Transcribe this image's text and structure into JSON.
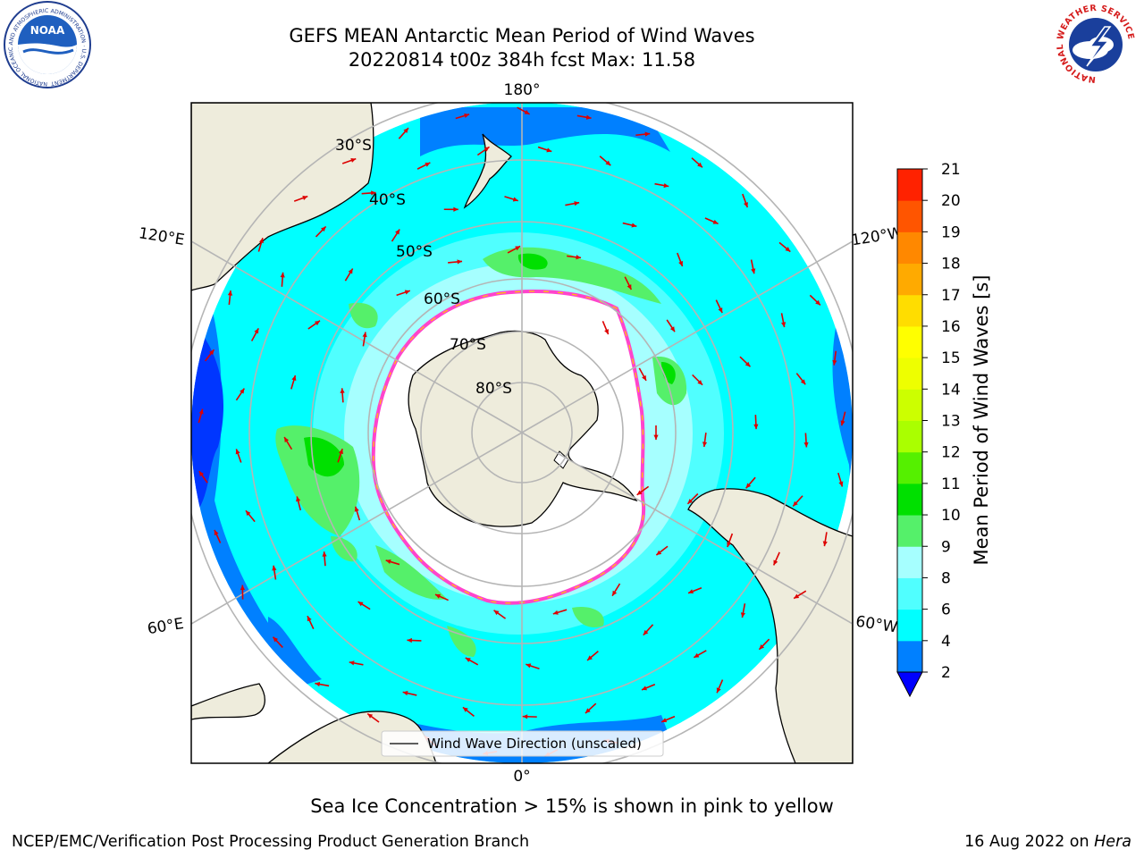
{
  "header": {
    "title_line1": "GEFS MEAN Antarctic Mean Period of Wind Waves",
    "title_line2": "20220814 t00z 384h fcst   Max: 11.58"
  },
  "logos": {
    "left_text": "NOAA",
    "left_ring_text": "NATIONAL OCEANIC AND ATMOSPHERIC ADMINISTRATION · U.S. DEPARTMENT OF COMMERCE",
    "right_ring_text": "NATIONAL WEATHER SERVICE"
  },
  "map": {
    "projection": "south-polar-stereographic",
    "lon_labels": {
      "top": "180°",
      "bottom": "0°",
      "upper_left": "120°E",
      "upper_right": "120°W",
      "lower_left": "60°E",
      "lower_right": "60°W"
    },
    "lat_labels": [
      "30°S",
      "40°S",
      "50°S",
      "60°S",
      "70°S",
      "80°S"
    ],
    "legend_label": "Wind Wave Direction (unscaled)",
    "colors": {
      "ocean_base": "#00ffff",
      "light_cyan": "#a6ffff",
      "mid_blue": "#0080ff",
      "deep_blue": "#0036ff",
      "green_9": "#55f06a",
      "green_10": "#00e000",
      "land": "#eeecdc",
      "ice_pink": "#ff44cc",
      "ice_yellow": "#ffcc00",
      "arrow": "#dd0000"
    }
  },
  "colorbar": {
    "label": "Mean Period of Wind Waves [s]",
    "ticks": [
      "2",
      "4",
      "6",
      "8",
      "9",
      "10",
      "11",
      "12",
      "13",
      "14",
      "15",
      "16",
      "17",
      "18",
      "19",
      "20",
      "21"
    ],
    "colors": [
      "#0080ff",
      "#00ffff",
      "#50ffff",
      "#a6ffff",
      "#55f06a",
      "#00e000",
      "#55f000",
      "#aaff00",
      "#ccff00",
      "#eeff00",
      "#ffff00",
      "#ffdd00",
      "#ffaa00",
      "#ff8800",
      "#ff5500",
      "#ff2200"
    ],
    "under_color": "#0000ff"
  },
  "footer": {
    "note": "Sea Ice Concentration > 15% is shown in pink to yellow",
    "left": "NCEP/EMC/Verification Post Processing Product Generation Branch",
    "right_date": "16 Aug 2022 on ",
    "right_machine": "Hera"
  }
}
